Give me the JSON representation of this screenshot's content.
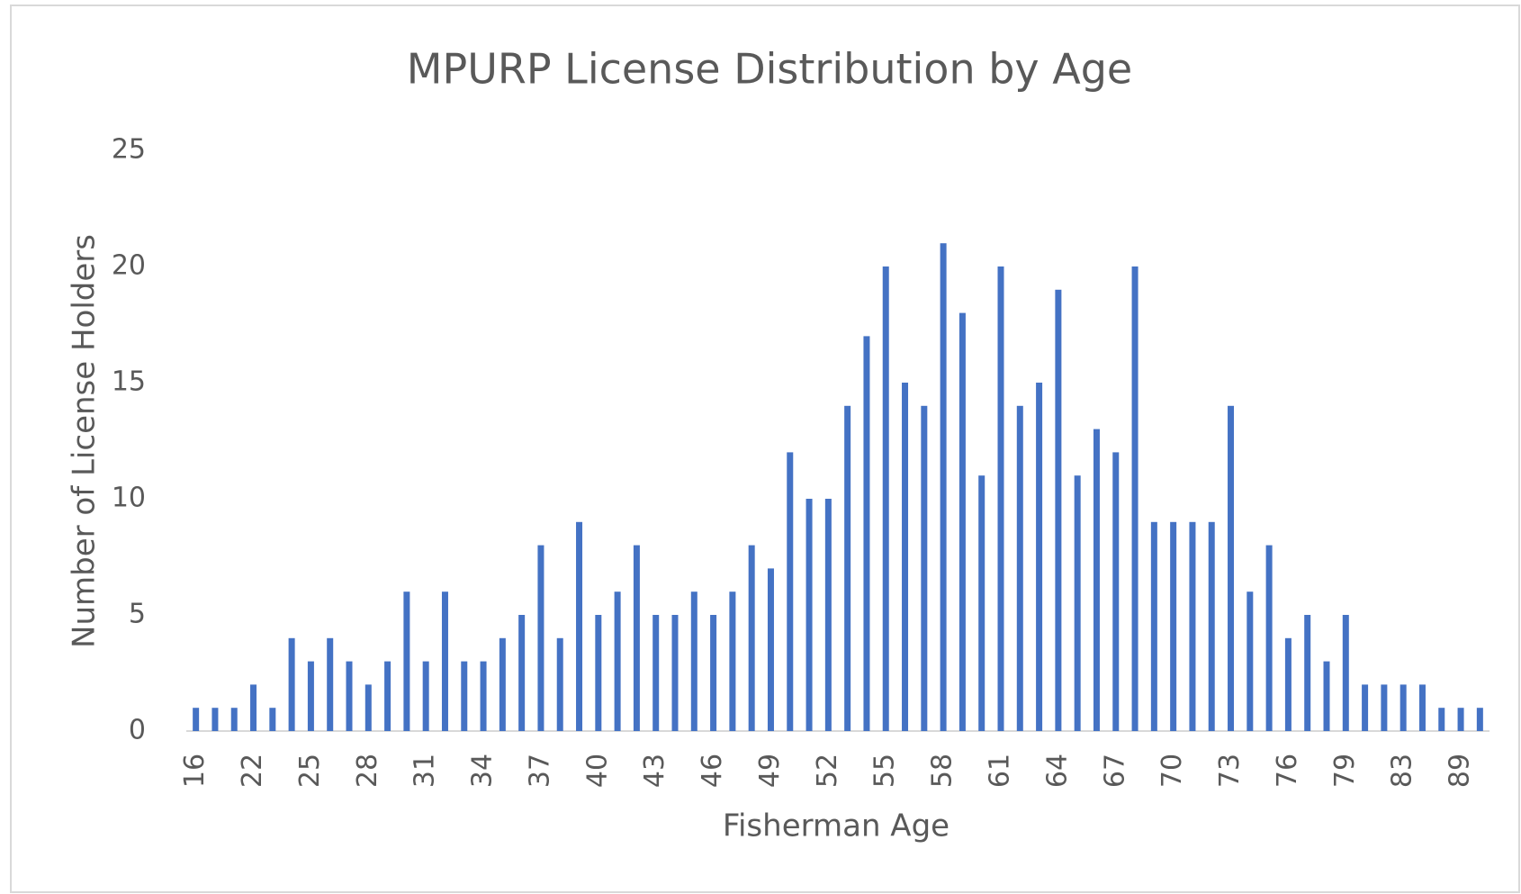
{
  "chart_data": {
    "type": "bar",
    "title": "MPURP License Distribution by Age",
    "x_label": "Fisherman Age",
    "y_label": "Number of License Holders",
    "categories": [
      "16",
      null,
      null,
      "22",
      null,
      null,
      "25",
      null,
      null,
      "28",
      null,
      null,
      "31",
      null,
      null,
      "34",
      null,
      null,
      "37",
      null,
      null,
      "40",
      null,
      null,
      "43",
      null,
      null,
      "46",
      null,
      null,
      "49",
      null,
      null,
      "52",
      null,
      null,
      "55",
      null,
      null,
      "58",
      null,
      null,
      "61",
      null,
      null,
      "64",
      null,
      null,
      "67",
      null,
      null,
      "70",
      null,
      null,
      "73",
      null,
      null,
      "76",
      null,
      null,
      "79",
      null,
      null,
      "83",
      null,
      null,
      "89",
      null
    ],
    "values": [
      1,
      1,
      1,
      2,
      1,
      4,
      3,
      4,
      3,
      2,
      3,
      6,
      3,
      6,
      3,
      3,
      4,
      5,
      8,
      4,
      9,
      5,
      6,
      8,
      5,
      5,
      6,
      5,
      6,
      8,
      7,
      12,
      10,
      10,
      14,
      17,
      20,
      15,
      14,
      21,
      18,
      11,
      20,
      14,
      15,
      19,
      11,
      13,
      12,
      20,
      9,
      9,
      9,
      9,
      14,
      6,
      8,
      4,
      5,
      3,
      5,
      2,
      2,
      2,
      2,
      1,
      1,
      1
    ],
    "color": "#4472c4",
    "ylim": [
      0,
      25
    ],
    "yticks": [
      0,
      5,
      10,
      15,
      20,
      25
    ],
    "grid": false
  }
}
